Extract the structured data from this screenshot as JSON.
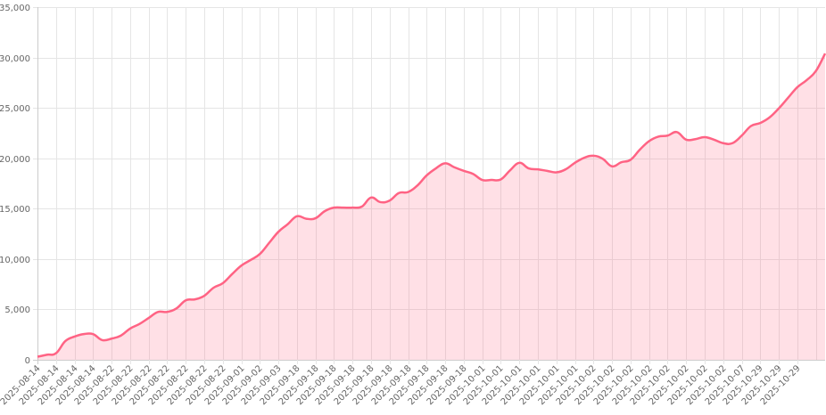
{
  "chart_data": {
    "type": "area",
    "title": "",
    "xlabel": "",
    "ylabel": "",
    "ylim": [
      0,
      35000
    ],
    "y_ticks": [
      0,
      5000,
      10000,
      15000,
      20000,
      25000,
      30000,
      35000
    ],
    "y_tick_labels": [
      "0",
      "5,000",
      "10,000",
      "15,000",
      "20,000",
      "25,000",
      "30,000",
      "35,000"
    ],
    "grid": true,
    "legend": "none",
    "colors": {
      "line": "#ff6384",
      "fill": "rgba(255,99,132,0.2)",
      "grid": "#e5e5e5"
    },
    "x_tick_labels": [
      "2025-08-14",
      "2025-08-14",
      "2025-08-14",
      "2025-08-14",
      "2025-08-22",
      "2025-08-22",
      "2025-08-22",
      "2025-08-22",
      "2025-08-22",
      "2025-08-22",
      "2025-08-22",
      "2025-09-01",
      "2025-09-02",
      "2025-09-03",
      "2025-09-18",
      "2025-09-18",
      "2025-09-18",
      "2025-09-18",
      "2025-09-18",
      "2025-09-18",
      "2025-09-18",
      "2025-09-18",
      "2025-09-18",
      "2025-09-18",
      "2025-10-01",
      "2025-10-01",
      "2025-10-01",
      "2025-10-01",
      "2025-10-01",
      "2025-10-01",
      "2025-10-02",
      "2025-10-02",
      "2025-10-02",
      "2025-10-02",
      "2025-10-02",
      "2025-10-02",
      "2025-10-02",
      "2025-10-02",
      "2025-10-07",
      "2025-10-29",
      "2025-10-29",
      "2025-10-29"
    ],
    "values": [
      300,
      500,
      650,
      1850,
      2300,
      2550,
      2550,
      1950,
      2100,
      2400,
      3100,
      3550,
      4150,
      4750,
      4750,
      5100,
      5900,
      6000,
      6350,
      7150,
      7600,
      8500,
      9350,
      9900,
      10500,
      11600,
      12700,
      13450,
      14250,
      14000,
      14050,
      14750,
      15100,
      15100,
      15100,
      15200,
      16100,
      15650,
      15800,
      16550,
      16650,
      17300,
      18300,
      19000,
      19500,
      19100,
      18750,
      18450,
      17850,
      17850,
      17900,
      18800,
      19550,
      19000,
      18900,
      18750,
      18600,
      18900,
      19550,
      20050,
      20250,
      19950,
      19200,
      19600,
      19850,
      20850,
      21700,
      22150,
      22250,
      22600,
      21850,
      21900,
      22100,
      21850,
      21500,
      21500,
      22250,
      23200,
      23500,
      24050,
      24950,
      26000,
      27050,
      27750,
      28650,
      30400
    ]
  }
}
